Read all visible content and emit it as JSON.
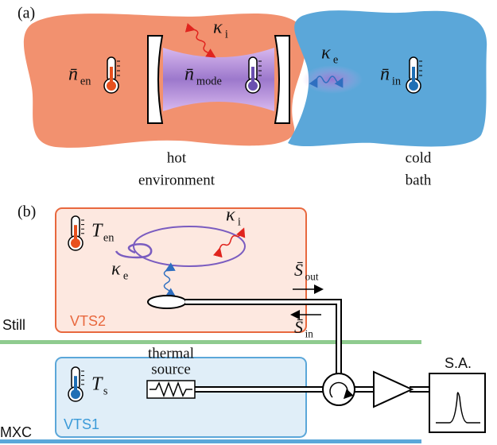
{
  "panel_a": {
    "label": "(a)",
    "kappa_i": {
      "symbol": "κ",
      "subscript": "i"
    },
    "kappa_e": {
      "symbol": "κ",
      "subscript": "e"
    },
    "n_en": {
      "symbol": "n̄",
      "subscript": "en"
    },
    "n_mode": {
      "symbol": "n̄",
      "subscript": "mode"
    },
    "n_in": {
      "symbol": "n̄",
      "subscript": "in"
    },
    "hot_label": [
      "hot",
      "environment"
    ],
    "cold_label": [
      "cold",
      "bath"
    ]
  },
  "panel_b": {
    "label": "(b)",
    "t_en": {
      "symbol": "T",
      "subscript": "en"
    },
    "kappa_i": {
      "symbol": "κ",
      "subscript": "i"
    },
    "kappa_e": {
      "symbol": "κ",
      "subscript": "e"
    },
    "s_out": {
      "symbol": "S̄",
      "subscript": "out"
    },
    "s_in": {
      "symbol": "S̄",
      "subscript": "in"
    },
    "still": "Still",
    "vts2": "VTS2",
    "thermal_source": [
      "thermal",
      "source"
    ],
    "t_s": {
      "symbol": "T",
      "subscript": "s"
    },
    "vts1": "VTS1",
    "mxc": "MXC",
    "sa": "S.A."
  }
}
